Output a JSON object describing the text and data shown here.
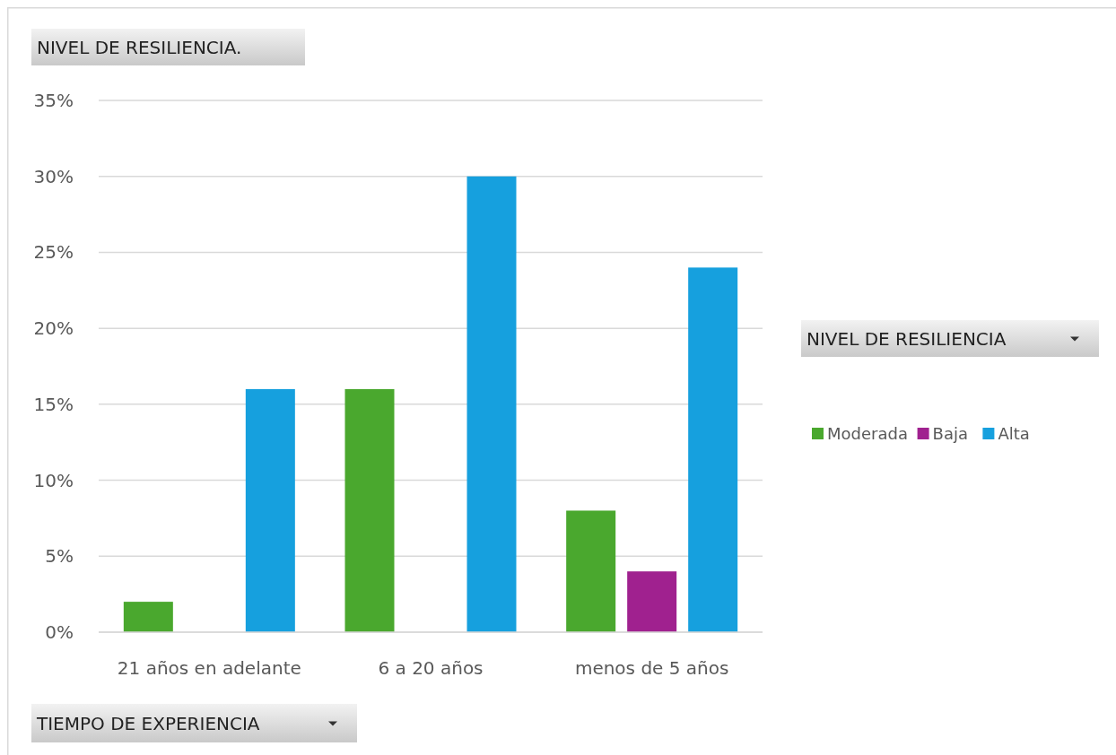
{
  "chart_data": {
    "type": "bar",
    "title": "NIVEL DE RESILIENCIA.",
    "xlabel": "TIEMPO DE EXPERIENCIA",
    "legend_title": "NIVEL DE RESILIENCIA",
    "categories": [
      "21 años en adelante",
      "6 a 20 años",
      "menos de 5 años"
    ],
    "series": [
      {
        "name": "Moderada",
        "color": "#4aa82e",
        "values": [
          2,
          16,
          8
        ]
      },
      {
        "name": "Baja",
        "color": "#a0218f",
        "values": [
          null,
          null,
          4
        ]
      },
      {
        "name": "Alta",
        "color": "#16a0de",
        "values": [
          16,
          30,
          24
        ]
      }
    ],
    "ylim": [
      0,
      35
    ],
    "yticks": [
      {
        "value": 0,
        "label": "0%"
      },
      {
        "value": 5,
        "label": "5%"
      },
      {
        "value": 10,
        "label": "10%"
      },
      {
        "value": 15,
        "label": "15%"
      },
      {
        "value": 20,
        "label": "20%"
      },
      {
        "value": 25,
        "label": "25%"
      },
      {
        "value": 30,
        "label": "30%"
      },
      {
        "value": 35,
        "label": "35%"
      }
    ],
    "grid": "y",
    "legend": "right"
  }
}
